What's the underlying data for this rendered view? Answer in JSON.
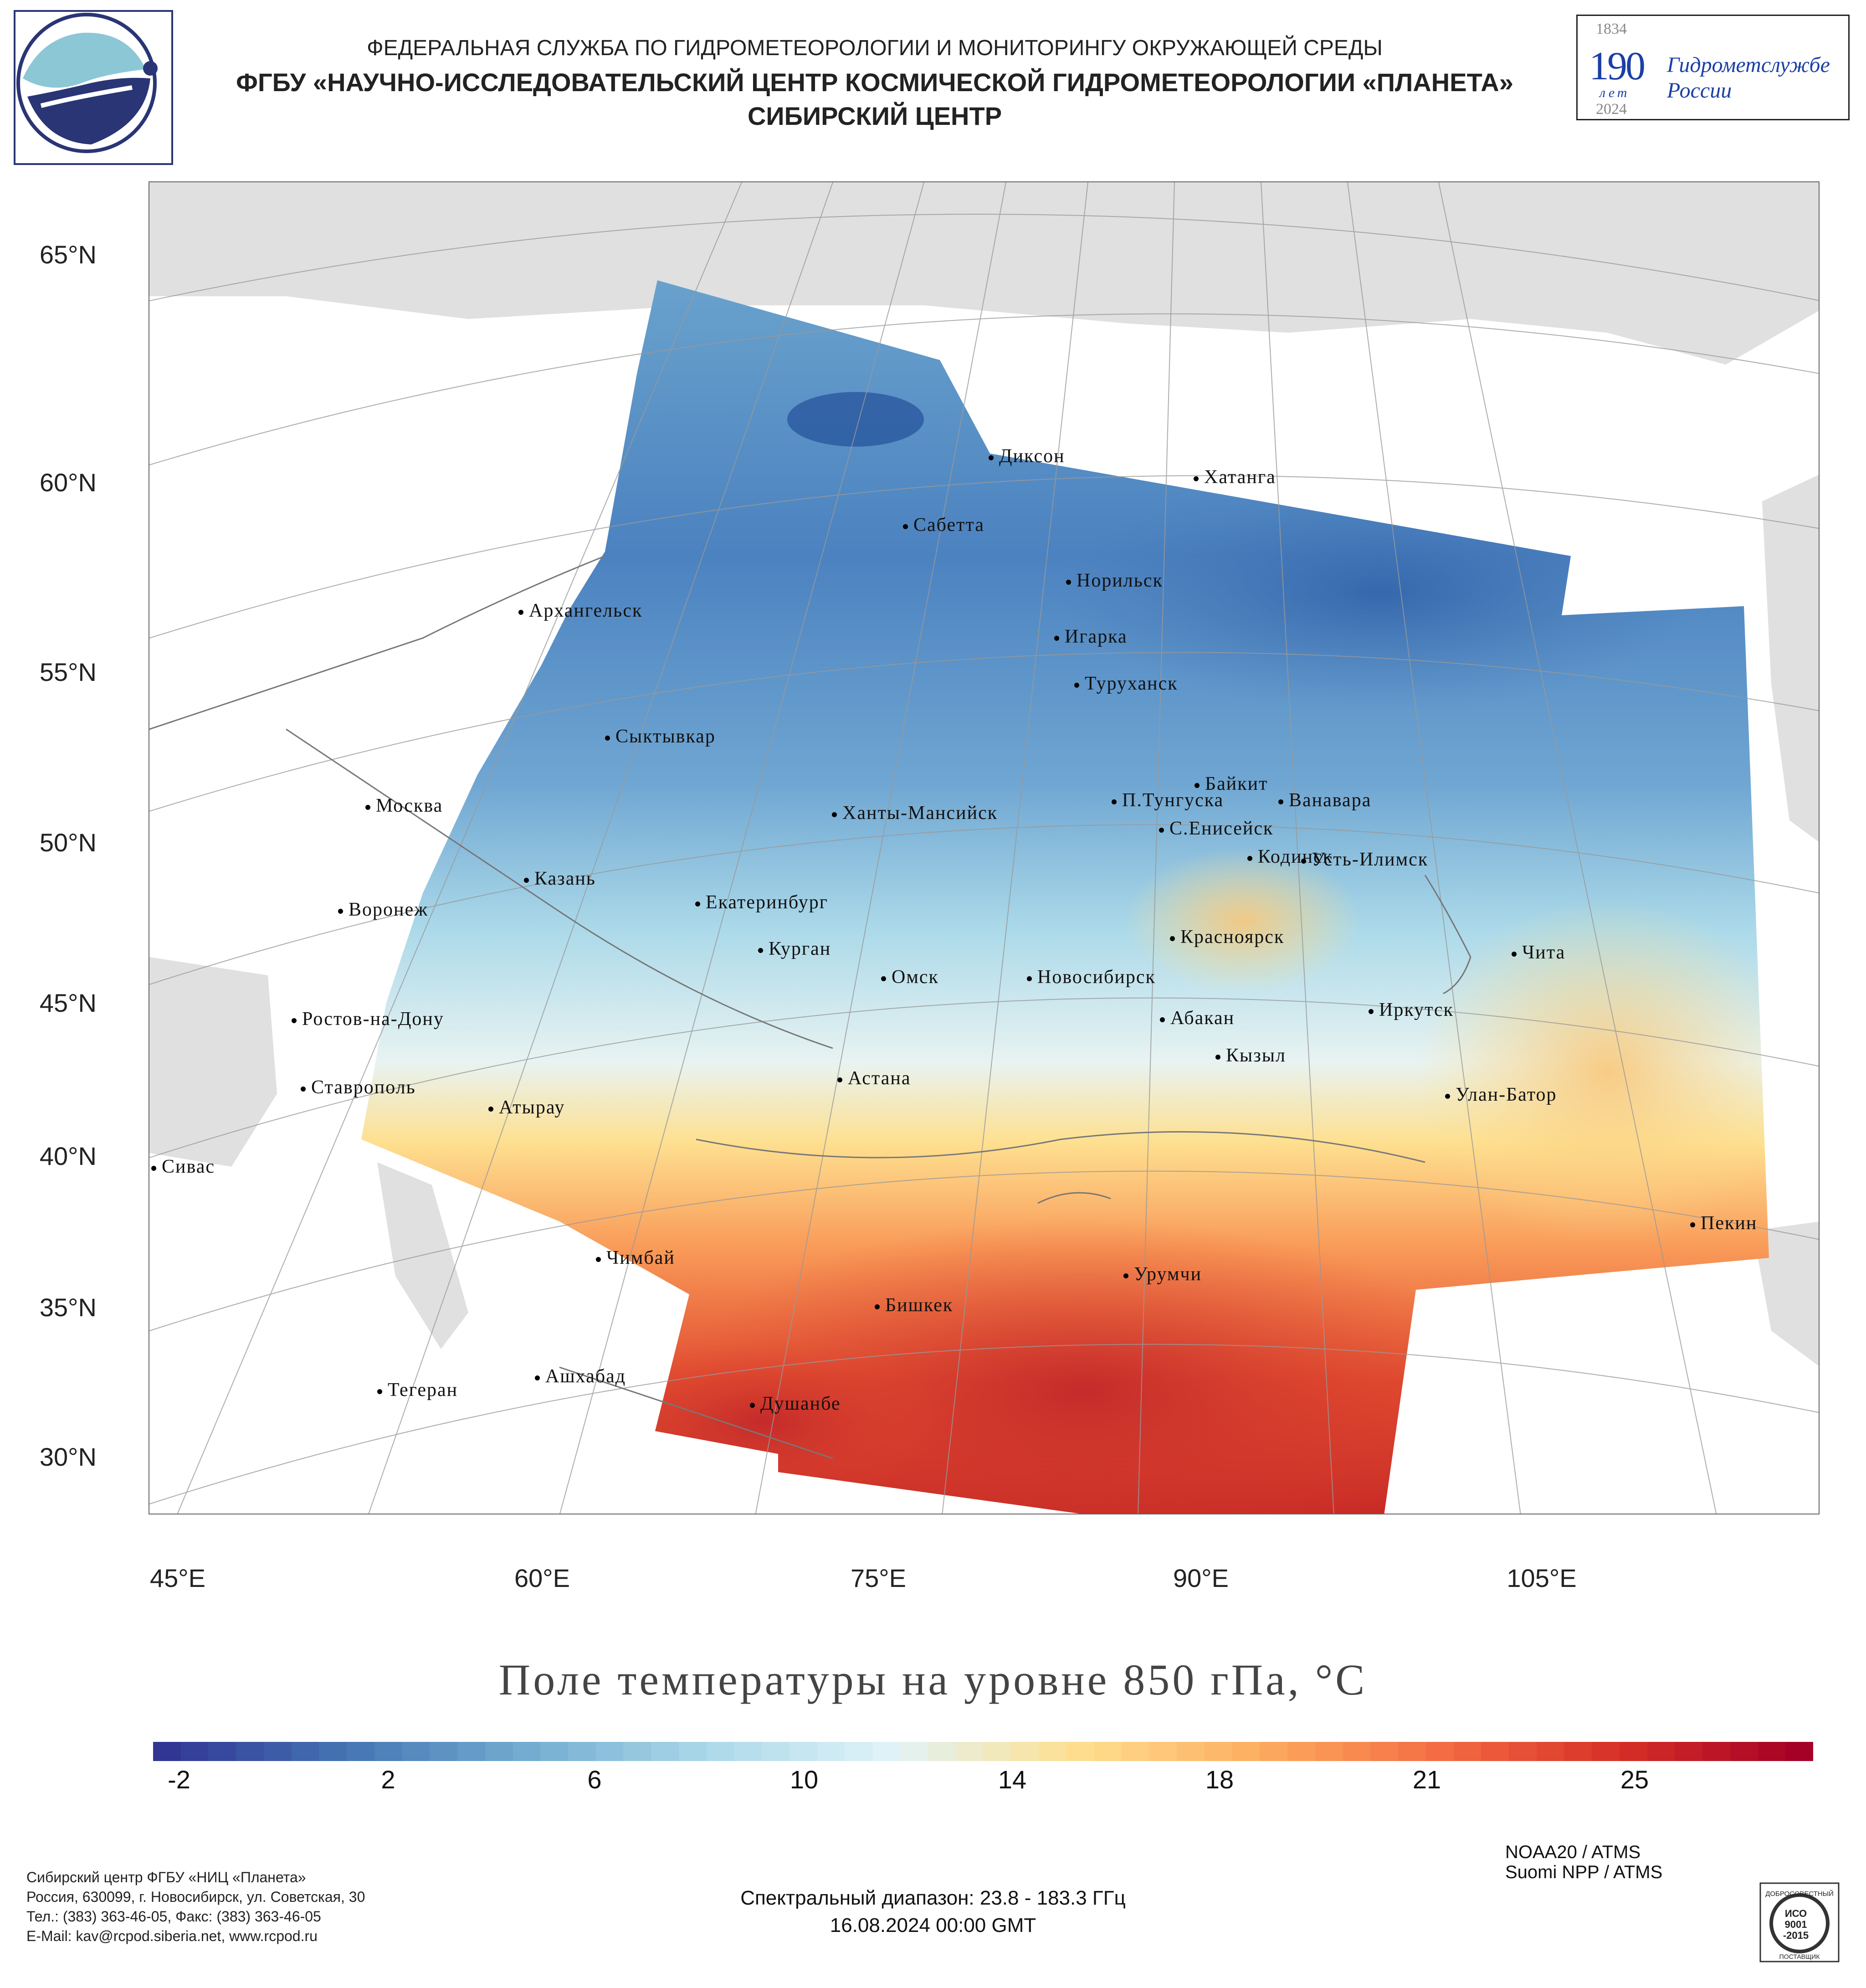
{
  "header": {
    "agency": "ФЕДЕРАЛЬНАЯ СЛУЖБА ПО ГИДРОМЕТЕОРОЛОГИИ И МОНИТОРИНГУ ОКРУЖАЮЩЕЙ СРЕДЫ",
    "center": "ФГБУ «НАУЧНО-ИССЛЕДОВАТЕЛЬСКИЙ ЦЕНТР КОСМИЧЕСКОЙ ГИДРОМЕТЕОРОЛОГИИ «ПЛАНЕТА»",
    "branch": "СИБИРСКИЙ ЦЕНТР",
    "anniversary": {
      "year_start": "1834",
      "number": "190",
      "unit": "лет",
      "year_end": "2024",
      "name_line1": "Гидрометслужбе",
      "name_line2": "России"
    }
  },
  "map": {
    "latitude_labels": [
      "65°N",
      "60°N",
      "55°N",
      "50°N",
      "45°N",
      "40°N",
      "35°N",
      "30°N"
    ],
    "longitude_labels": [
      "45°E",
      "60°E",
      "75°E",
      "90°E",
      "105°E"
    ],
    "cities": [
      "Диксон",
      "Хатанга",
      "Сабетта",
      "Архангельск",
      "Норильск",
      "Игарка",
      "Туруханск",
      "Сыктывкар",
      "Байкит",
      "П.Тунгуска",
      "Ванавара",
      "Москва",
      "Ханты-Мансийск",
      "С.Енисейск",
      "Кодинск",
      "Усть-Илимск",
      "Казань",
      "Екатеринбург",
      "Воронеж",
      "Красноярск",
      "Курган",
      "Чита",
      "Омск",
      "Новосибирск",
      "Ростов-на-Дону",
      "Иркутск",
      "Абакан",
      "Кызыл",
      "Ставрополь",
      "Астана",
      "Улан-Батор",
      "Атырау",
      "Сивас",
      "Пекин",
      "Чимбай",
      "Урумчи",
      "Бишкек",
      "Ашхабад",
      "Тегеран",
      "Душанбе"
    ],
    "title": "Поле температуры на уровне 850 гПа, °C"
  },
  "colorbar": {
    "ticks": [
      "-2",
      "2",
      "6",
      "10",
      "14",
      "18",
      "21",
      "25"
    ],
    "colors": [
      "#313695",
      "#4575b4",
      "#74add1",
      "#abd9e9",
      "#e0f3f8",
      "#fee090",
      "#fdae61",
      "#f46d43",
      "#d73027",
      "#a50026"
    ]
  },
  "footer": {
    "contacts": [
      "Сибирский центр ФГБУ «НИЦ «Планета»",
      "Россия, 630099, г. Новосибирск, ул. Советская, 30",
      "Тел.: (383) 363-46-05, Факс: (383) 363-46-05",
      "E-Mail: kav@rcpod.siberia.net, www.rcpod.ru"
    ],
    "satellites": [
      "NOAA20 / ATMS",
      "Suomi NPP / ATMS"
    ],
    "spectral": "Спектральный диапазон: 23.8 - 183.3 ГГц",
    "datetime": "16.08.2024 00:00 GMT",
    "iso": {
      "top": "ДОБРОСОВЕСТНЫЙ",
      "line1": "ИСО",
      "line2": "9001",
      "line3": "-2015",
      "bottom": "ПОСТАВЩИК"
    }
  }
}
